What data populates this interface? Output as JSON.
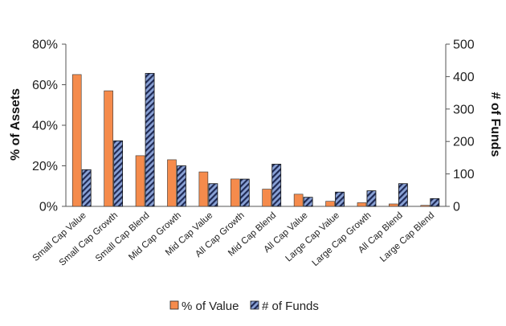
{
  "chart_data": {
    "type": "bar",
    "categories": [
      "Small Cap Value",
      "Small Cap Growth",
      "Small Cap Blend",
      "Mid Cap Growth",
      "Mid Cap Value",
      "All Cap Growth",
      "Mid Cap Blend",
      "All Cap Value",
      "Large Cap Value",
      "Large Cap Growth",
      "All Cap Blend",
      "Large Cap Blend"
    ],
    "series": [
      {
        "name": "% of Value",
        "axis": "left",
        "color": "#f58b4c",
        "values": [
          65,
          57,
          25,
          23,
          17,
          13.5,
          8.5,
          6,
          2.5,
          1.8,
          1.2,
          0.5
        ]
      },
      {
        "name": "# of Funds",
        "axis": "right",
        "color": "#8aa2d6",
        "pattern": "diagonal-stripes",
        "values": [
          113,
          202,
          410,
          125,
          70,
          84,
          130,
          28,
          44,
          48,
          70,
          24
        ]
      }
    ],
    "ylabel": "% of Assets",
    "ylabel_right": "# of Funds",
    "ylim": [
      0,
      80
    ],
    "ylim_right": [
      0,
      500
    ],
    "yticks": [
      "0%",
      "20%",
      "40%",
      "60%",
      "80%"
    ],
    "yticks_right": [
      "0",
      "100",
      "200",
      "300",
      "400",
      "500"
    ],
    "grid": false,
    "legend": "bottom"
  }
}
